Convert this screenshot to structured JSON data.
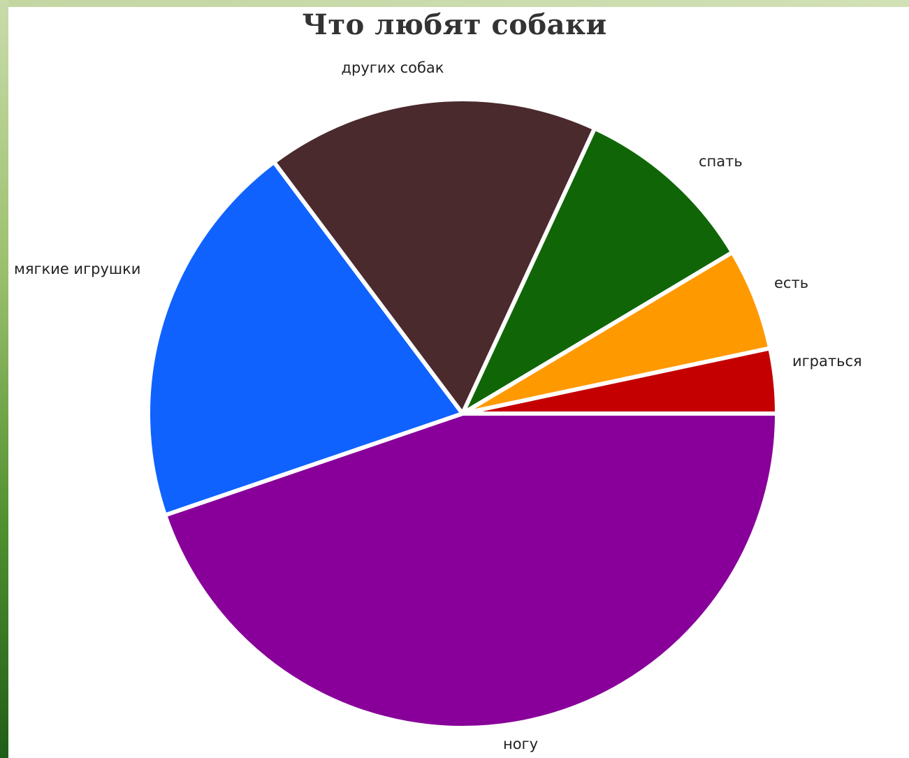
{
  "chart_data": {
    "type": "pie",
    "title": "Что любят собаки",
    "slices": [
      {
        "label": "ногу",
        "value": 47,
        "color": "#880099"
      },
      {
        "label": "мягкие игрушки",
        "value": 21,
        "color": "#0f62fe"
      },
      {
        "label": "других собак",
        "value": 18,
        "color": "#4a2a2d"
      },
      {
        "label": "спать",
        "value": 10,
        "color": "#106606"
      },
      {
        "label": "есть",
        "value": 5.5,
        "color": "#ff9900"
      },
      {
        "label": "играться",
        "value": 3.5,
        "color": "#c40000"
      }
    ]
  }
}
